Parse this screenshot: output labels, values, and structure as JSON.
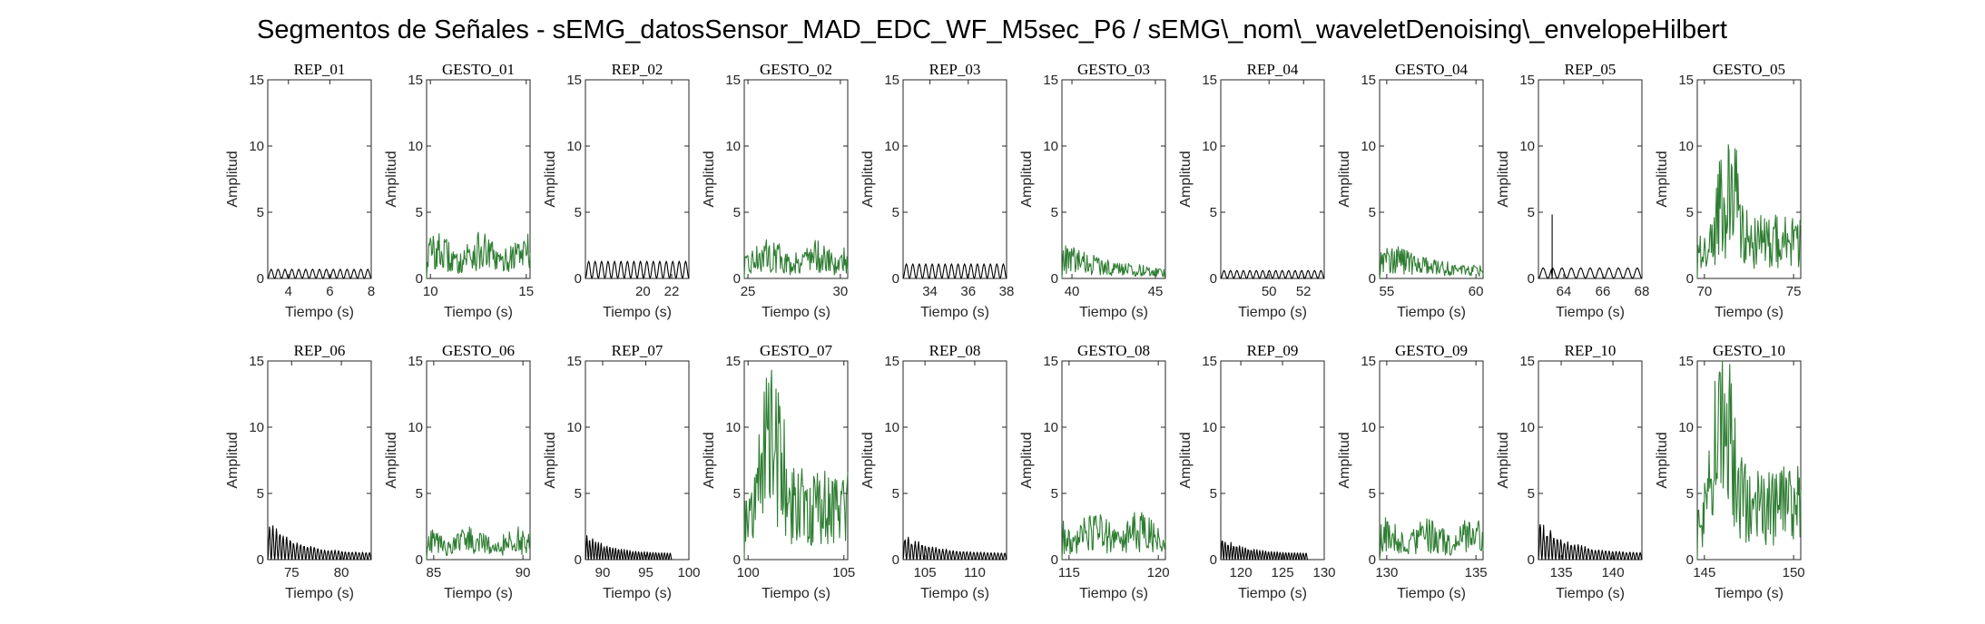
{
  "figure_title": "Segmentos de Señales - sEMG_datosSensor_MAD_EDC_WF_M5sec_P6 / sEMG\\_nom\\_waveletDenoising\\_envelopeHilbert",
  "colors": {
    "rep": "#000000",
    "gesto": "#2e7d32",
    "axis": "#262626"
  },
  "chart_data": [
    {
      "type": "line",
      "title": "REP_01",
      "xlabel": "Tiempo (s)",
      "ylabel": "Amplitud",
      "xlim": [
        3,
        8
      ],
      "ylim": [
        0,
        15
      ],
      "xticks": [
        4,
        6,
        8
      ],
      "yticks": [
        0,
        5,
        10,
        15
      ],
      "series": [
        {
          "kind": "rep",
          "amp": 0.7,
          "cycles": 15,
          "spike": null
        }
      ]
    },
    {
      "type": "line",
      "title": "GESTO_01",
      "xlabel": "Tiempo (s)",
      "ylabel": "Amplitud",
      "xlim": [
        9.8,
        15.2
      ],
      "ylim": [
        0,
        15
      ],
      "xticks": [
        10,
        15
      ],
      "yticks": [
        0,
        5,
        10,
        15
      ],
      "series": [
        {
          "kind": "gesto",
          "amp": 3.5,
          "shape": "spread"
        }
      ]
    },
    {
      "type": "line",
      "title": "REP_02",
      "xlabel": "Tiempo (s)",
      "ylabel": "Amplitud",
      "xlim": [
        16,
        23.2
      ],
      "ylim": [
        0,
        15
      ],
      "xticks": [
        20,
        22
      ],
      "yticks": [
        0,
        5,
        10,
        15
      ],
      "series": [
        {
          "kind": "rep",
          "amp": 1.3,
          "cycles": 16,
          "spike": null
        }
      ]
    },
    {
      "type": "line",
      "title": "GESTO_02",
      "xlabel": "Tiempo (s)",
      "ylabel": "Amplitud",
      "xlim": [
        24.8,
        30.4
      ],
      "ylim": [
        0,
        15
      ],
      "xticks": [
        25,
        30
      ],
      "yticks": [
        0,
        5,
        10,
        15
      ],
      "series": [
        {
          "kind": "gesto",
          "amp": 3.0,
          "shape": "spread"
        }
      ]
    },
    {
      "type": "line",
      "title": "REP_03",
      "xlabel": "Tiempo (s)",
      "ylabel": "Amplitud",
      "xlim": [
        32.6,
        38
      ],
      "ylim": [
        0,
        15
      ],
      "xticks": [
        34,
        36,
        38
      ],
      "yticks": [
        0,
        5,
        10,
        15
      ],
      "series": [
        {
          "kind": "rep",
          "amp": 1.1,
          "cycles": 16,
          "spike": null
        }
      ]
    },
    {
      "type": "line",
      "title": "GESTO_03",
      "xlabel": "Tiempo (s)",
      "ylabel": "Amplitud",
      "xlim": [
        39.4,
        45.6
      ],
      "ylim": [
        0,
        15
      ],
      "xticks": [
        40,
        45
      ],
      "yticks": [
        0,
        5,
        10,
        15
      ],
      "series": [
        {
          "kind": "gesto",
          "amp": 2.5,
          "shape": "front"
        }
      ]
    },
    {
      "type": "line",
      "title": "REP_04",
      "xlabel": "Tiempo (s)",
      "ylabel": "Amplitud",
      "xlim": [
        47.2,
        53.2
      ],
      "ylim": [
        0,
        15
      ],
      "xticks": [
        50,
        52
      ],
      "yticks": [
        0,
        5,
        10,
        15
      ],
      "series": [
        {
          "kind": "rep",
          "amp": 0.6,
          "cycles": 16,
          "spike": null
        }
      ]
    },
    {
      "type": "line",
      "title": "GESTO_04",
      "xlabel": "Tiempo (s)",
      "ylabel": "Amplitud",
      "xlim": [
        54.6,
        60.4
      ],
      "ylim": [
        0,
        15
      ],
      "xticks": [
        55,
        60
      ],
      "yticks": [
        0,
        5,
        10,
        15
      ],
      "series": [
        {
          "kind": "gesto",
          "amp": 2.8,
          "shape": "front"
        }
      ]
    },
    {
      "type": "line",
      "title": "REP_05",
      "xlabel": "Tiempo (s)",
      "ylabel": "Amplitud",
      "xlim": [
        62.7,
        68
      ],
      "ylim": [
        0,
        15
      ],
      "xticks": [
        64,
        66,
        68
      ],
      "yticks": [
        0,
        5,
        10,
        15
      ],
      "series": [
        {
          "kind": "rep",
          "amp": 0.8,
          "cycles": 11,
          "spike": [
            63.4,
            4.8
          ]
        }
      ]
    },
    {
      "type": "line",
      "title": "GESTO_05",
      "xlabel": "Tiempo (s)",
      "ylabel": "Amplitud",
      "xlim": [
        69.6,
        75.4
      ],
      "ylim": [
        0,
        15
      ],
      "xticks": [
        70,
        75
      ],
      "yticks": [
        0,
        5,
        10,
        15
      ],
      "series": [
        {
          "kind": "gesto",
          "amp": 10.1,
          "shape": "burst",
          "peak": 71.3
        }
      ]
    },
    {
      "type": "line",
      "title": "REP_06",
      "xlabel": "Tiempo (s)",
      "ylabel": "Amplitud",
      "xlim": [
        72.6,
        83
      ],
      "ylim": [
        0,
        15
      ],
      "xticks": [
        75,
        80
      ],
      "yticks": [
        0,
        5,
        10,
        15
      ],
      "series": [
        {
          "kind": "rep",
          "amp": 3.1,
          "cycles": 30,
          "spike": null,
          "decay": true
        }
      ]
    },
    {
      "type": "line",
      "title": "GESTO_06",
      "xlabel": "Tiempo (s)",
      "ylabel": "Amplitud",
      "xlim": [
        84.6,
        90.4
      ],
      "ylim": [
        0,
        15
      ],
      "xticks": [
        85,
        90
      ],
      "yticks": [
        0,
        5,
        10,
        15
      ],
      "series": [
        {
          "kind": "gesto",
          "amp": 2.5,
          "shape": "spread"
        }
      ]
    },
    {
      "type": "line",
      "title": "REP_07",
      "xlabel": "Tiempo (s)",
      "ylabel": "Amplitud",
      "xlim": [
        88,
        100
      ],
      "ylim": [
        0,
        15
      ],
      "xticks": [
        90,
        95,
        100
      ],
      "yticks": [
        0,
        5,
        10,
        15
      ],
      "series": [
        {
          "kind": "rep",
          "amp": 2.0,
          "cycles": 30,
          "spike": null,
          "decay": true,
          "end": 98
        }
      ]
    },
    {
      "type": "line",
      "title": "GESTO_07",
      "xlabel": "Tiempo (s)",
      "ylabel": "Amplitud",
      "xlim": [
        99.8,
        105.2
      ],
      "ylim": [
        0,
        15
      ],
      "xticks": [
        100,
        105
      ],
      "yticks": [
        0,
        5,
        10,
        15
      ],
      "series": [
        {
          "kind": "gesto",
          "amp": 14.3,
          "shape": "burst",
          "peak": 101.2
        }
      ]
    },
    {
      "type": "line",
      "title": "REP_08",
      "xlabel": "Tiempo (s)",
      "ylabel": "Amplitud",
      "xlim": [
        102.8,
        113.2
      ],
      "ylim": [
        0,
        15
      ],
      "xticks": [
        105,
        110
      ],
      "yticks": [
        0,
        5,
        10,
        15
      ],
      "series": [
        {
          "kind": "rep",
          "amp": 2.0,
          "cycles": 30,
          "spike": null,
          "decay": true
        }
      ]
    },
    {
      "type": "line",
      "title": "GESTO_08",
      "xlabel": "Tiempo (s)",
      "ylabel": "Amplitud",
      "xlim": [
        114.6,
        120.4
      ],
      "ylim": [
        0,
        15
      ],
      "xticks": [
        115,
        120
      ],
      "yticks": [
        0,
        5,
        10,
        15
      ],
      "series": [
        {
          "kind": "gesto",
          "amp": 3.7,
          "shape": "spread"
        }
      ]
    },
    {
      "type": "line",
      "title": "REP_09",
      "xlabel": "Tiempo (s)",
      "ylabel": "Amplitud",
      "xlim": [
        117.6,
        130
      ],
      "ylim": [
        0,
        15
      ],
      "xticks": [
        120,
        125,
        130
      ],
      "yticks": [
        0,
        5,
        10,
        15
      ],
      "series": [
        {
          "kind": "rep",
          "amp": 1.8,
          "cycles": 30,
          "spike": null,
          "decay": true,
          "end": 128
        }
      ]
    },
    {
      "type": "line",
      "title": "GESTO_09",
      "xlabel": "Tiempo (s)",
      "ylabel": "Amplitud",
      "xlim": [
        129.6,
        135.4
      ],
      "ylim": [
        0,
        15
      ],
      "xticks": [
        130,
        135
      ],
      "yticks": [
        0,
        5,
        10,
        15
      ],
      "series": [
        {
          "kind": "gesto",
          "amp": 3.2,
          "shape": "spread"
        }
      ]
    },
    {
      "type": "line",
      "title": "REP_10",
      "xlabel": "Tiempo (s)",
      "ylabel": "Amplitud",
      "xlim": [
        132.8,
        142.8
      ],
      "ylim": [
        0,
        15
      ],
      "xticks": [
        135,
        140
      ],
      "yticks": [
        0,
        5,
        10,
        15
      ],
      "series": [
        {
          "kind": "rep",
          "amp": 3.1,
          "cycles": 30,
          "spike": null,
          "decay": true
        }
      ]
    },
    {
      "type": "line",
      "title": "GESTO_10",
      "xlabel": "Tiempo (s)",
      "ylabel": "Amplitud",
      "xlim": [
        144.6,
        150.4
      ],
      "ylim": [
        0,
        15
      ],
      "xticks": [
        145,
        150
      ],
      "yticks": [
        0,
        5,
        10,
        15
      ],
      "series": [
        {
          "kind": "gesto",
          "amp": 15,
          "shape": "burst",
          "peak": 146
        }
      ]
    }
  ]
}
